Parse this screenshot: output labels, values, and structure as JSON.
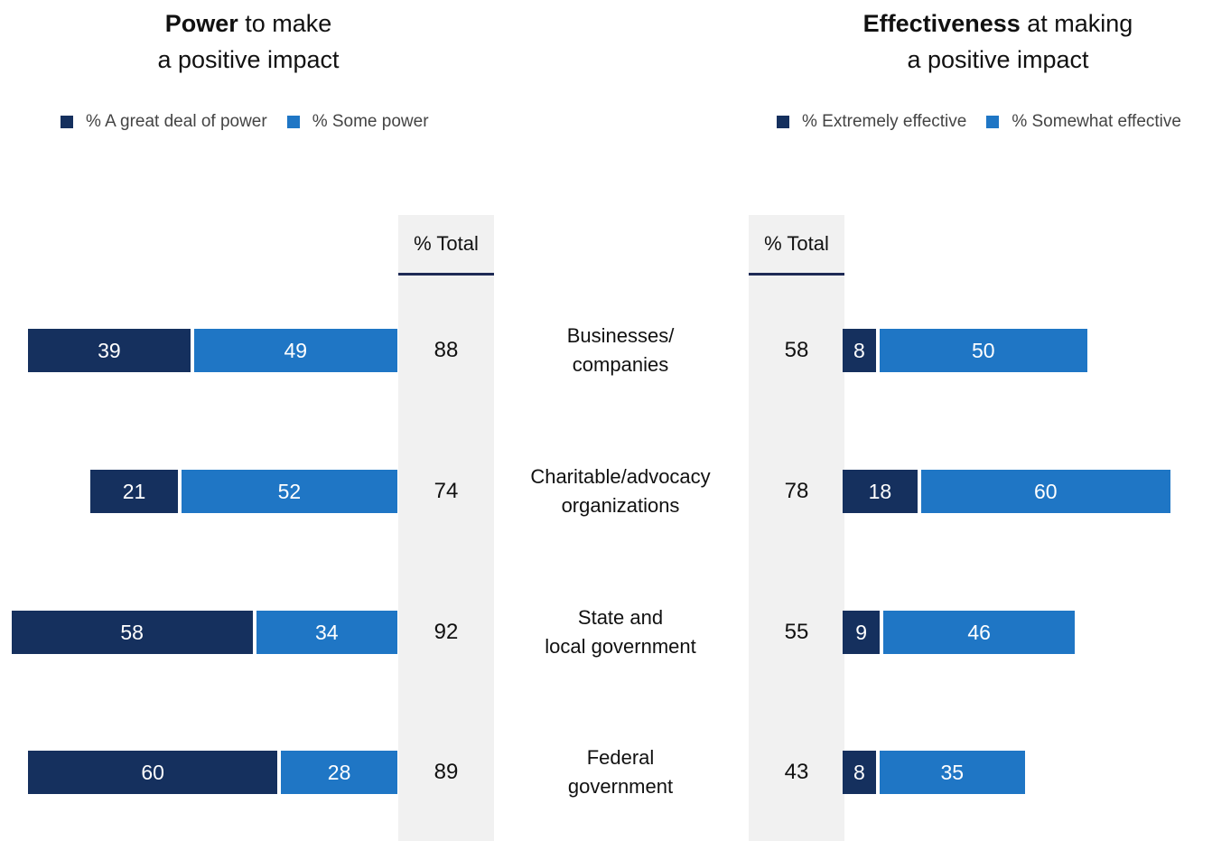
{
  "colors": {
    "dark": "#15305e",
    "light": "#1f76c5"
  },
  "left_panel": {
    "title_bold": "Power",
    "title_rest": " to make",
    "title_line2": "a positive impact",
    "legend": [
      "% A great deal of power",
      "% Some power"
    ],
    "total_header": "% Total"
  },
  "right_panel": {
    "title_bold": "Effectiveness",
    "title_rest": " at making",
    "title_line2": "a positive impact",
    "legend": [
      "% Extremely effective",
      "% Somewhat effective"
    ],
    "total_header": "% Total"
  },
  "chart_data": [
    {
      "type": "bar",
      "orientation": "horizontal-stacked",
      "title": "Power to make a positive impact",
      "categories": [
        "Businesses/ companies",
        "Charitable/advocacy organizations",
        "State and local government",
        "Federal government"
      ],
      "category_lines": [
        [
          "Businesses/",
          "companies"
        ],
        [
          "Charitable/advocacy",
          "organizations"
        ],
        [
          "State and",
          "local government"
        ],
        [
          "Federal",
          "government"
        ]
      ],
      "series": [
        {
          "name": "% A great deal of power",
          "values": [
            39,
            21,
            58,
            60
          ]
        },
        {
          "name": "% Some power",
          "values": [
            49,
            52,
            34,
            28
          ]
        }
      ],
      "totals": [
        88,
        74,
        92,
        89
      ],
      "legend_position": "top"
    },
    {
      "type": "bar",
      "orientation": "horizontal-stacked",
      "title": "Effectiveness at making a positive impact",
      "categories": [
        "Businesses/ companies",
        "Charitable/advocacy organizations",
        "State and local government",
        "Federal government"
      ],
      "series": [
        {
          "name": "% Extremely effective",
          "values": [
            8,
            18,
            9,
            8
          ]
        },
        {
          "name": "% Somewhat effective",
          "values": [
            50,
            60,
            46,
            35
          ]
        }
      ],
      "totals": [
        58,
        78,
        55,
        43
      ],
      "legend_position": "top"
    }
  ]
}
